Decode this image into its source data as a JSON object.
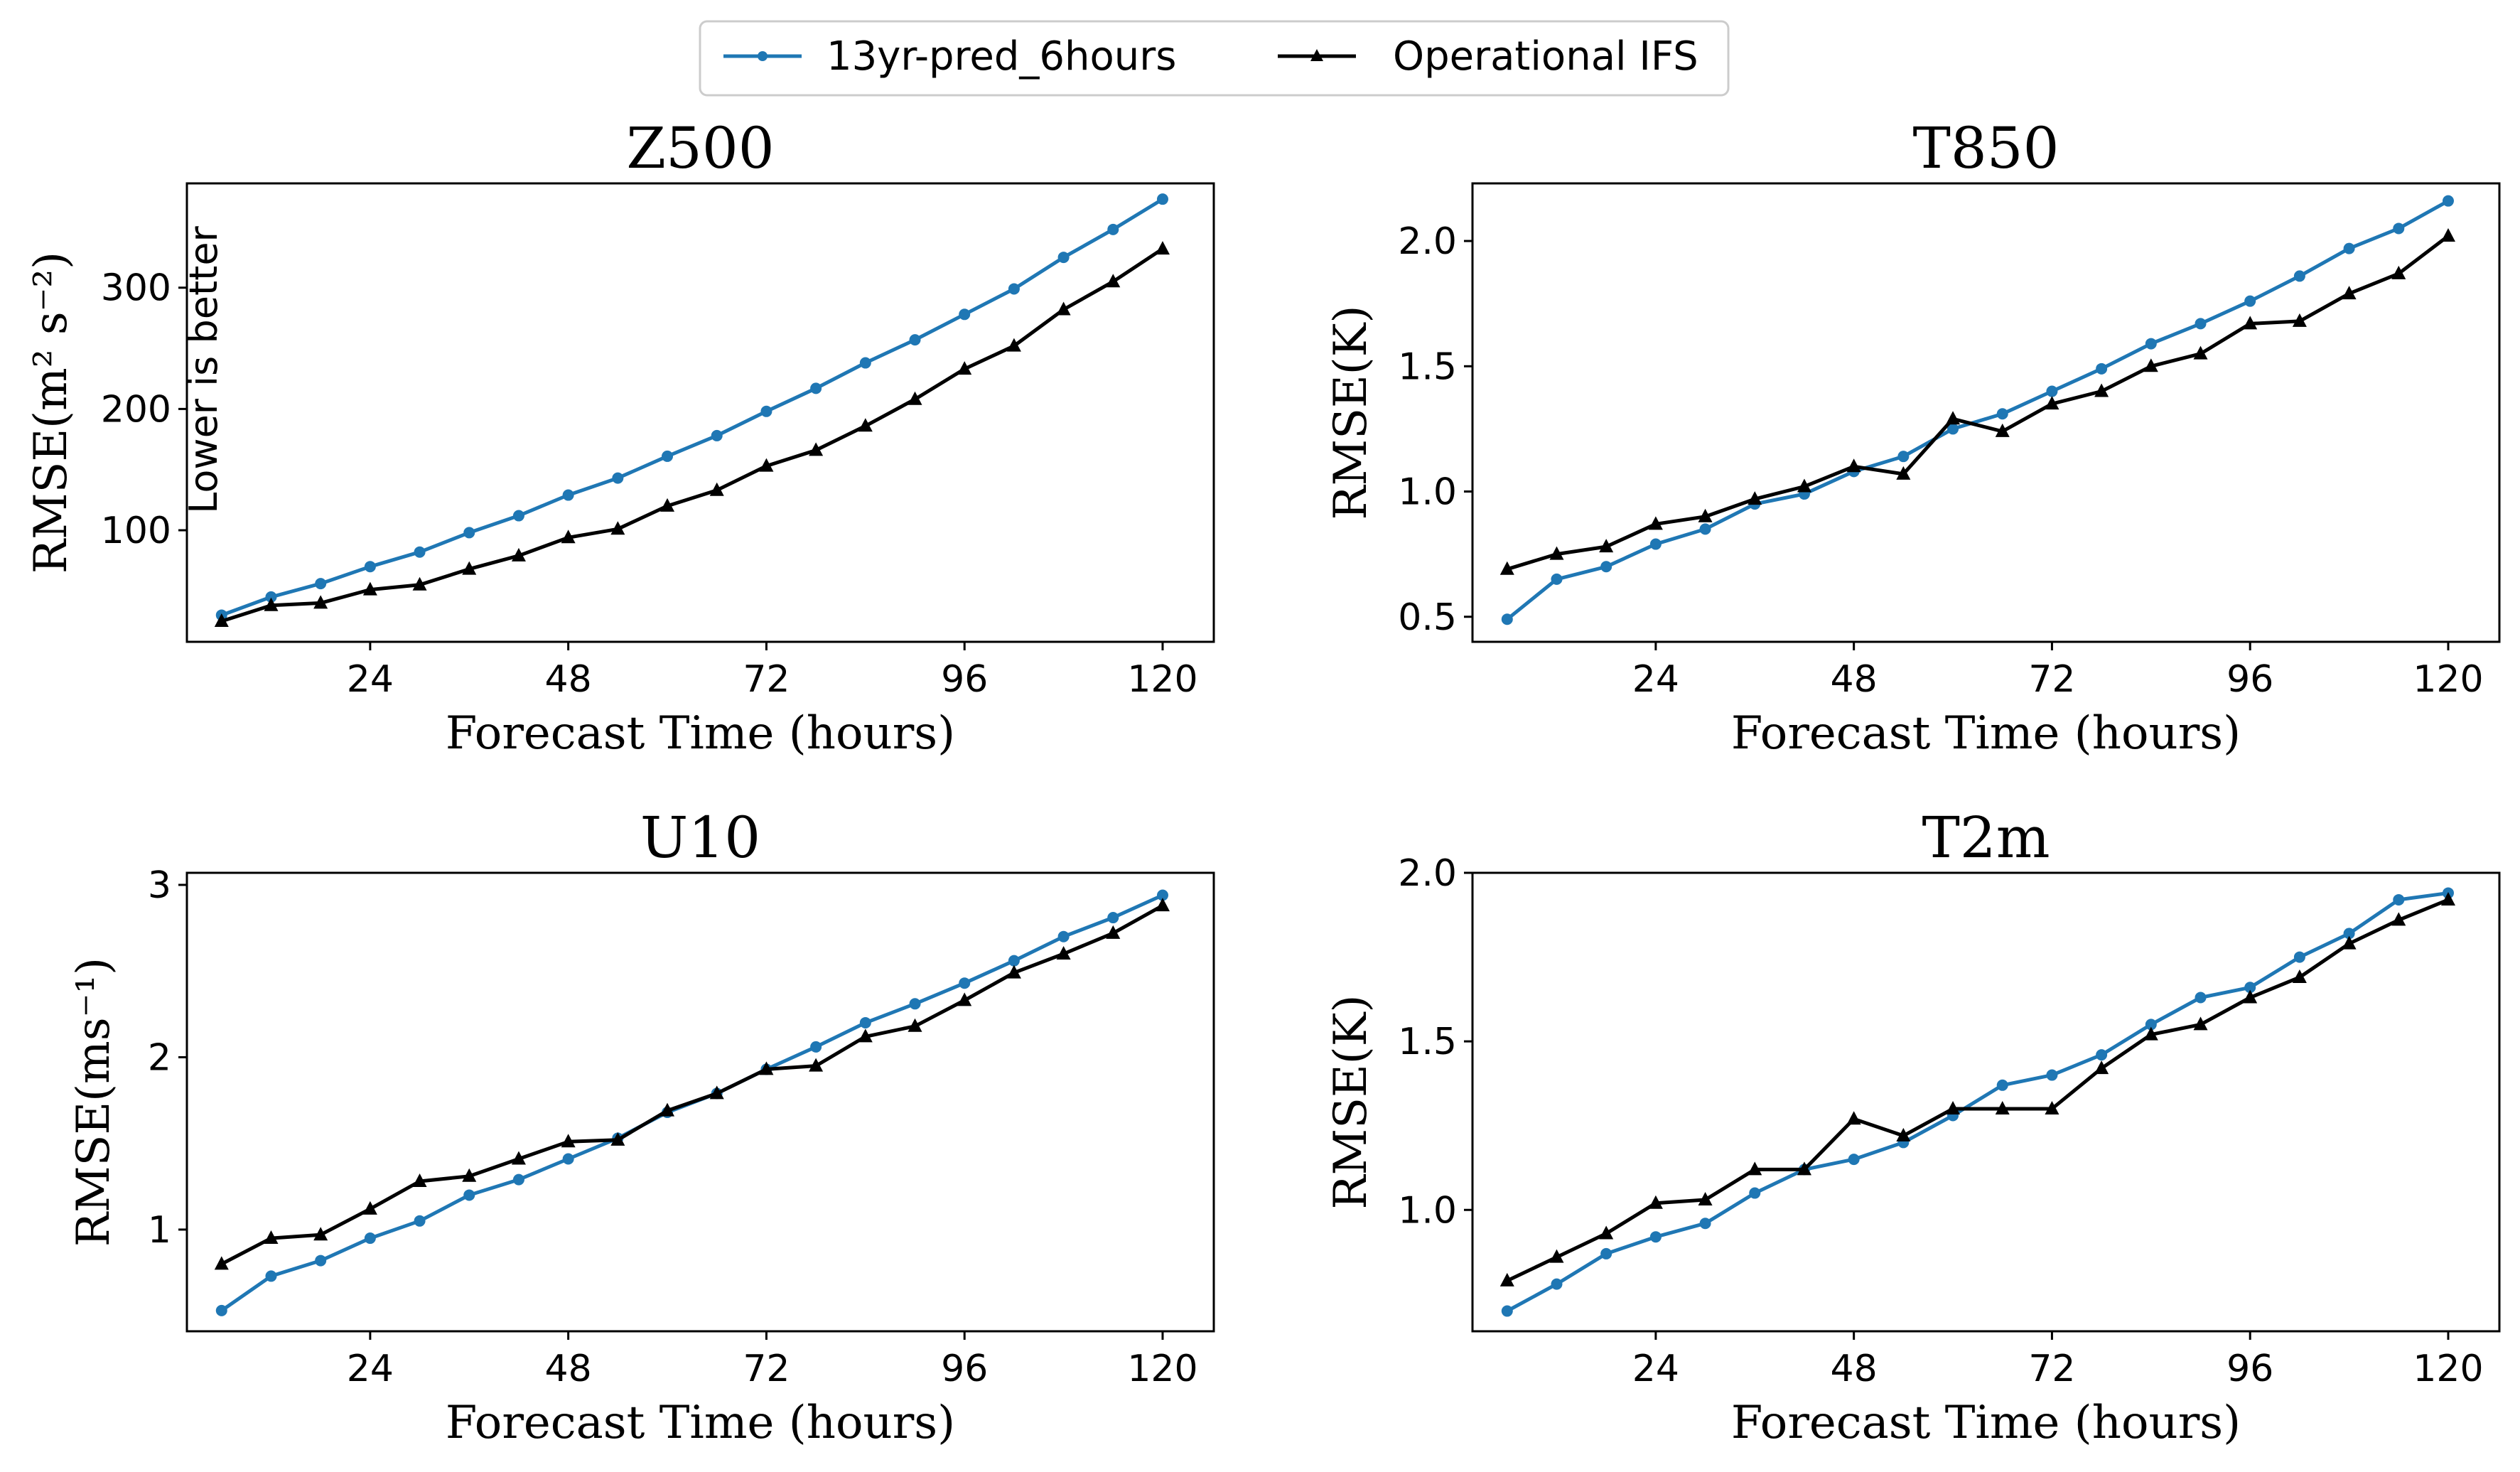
{
  "legend": {
    "entries": [
      {
        "label": "13yr-pred_6hours",
        "color": "#1f77b4",
        "marker": "circle"
      },
      {
        "label": "Operational IFS",
        "color": "#000000",
        "marker": "triangle"
      }
    ]
  },
  "chart_data": [
    {
      "type": "line",
      "title": "Z500",
      "xlabel": "Forecast Time (hours)",
      "ylabel": "RMSE(m² s⁻²)",
      "annotation": "Lower is better",
      "xlim": [
        1.8,
        126.2
      ],
      "ylim": [
        8,
        386
      ],
      "xticks": [
        24,
        48,
        72,
        96,
        120
      ],
      "yticks": [
        100,
        200,
        300
      ],
      "x": [
        6,
        12,
        18,
        24,
        30,
        36,
        42,
        48,
        54,
        60,
        66,
        72,
        78,
        84,
        90,
        96,
        102,
        108,
        114,
        120
      ],
      "series": [
        {
          "name": "13yr-pred_6hours",
          "color": "#1f77b4",
          "marker": "circle",
          "values": [
            30,
            45,
            56,
            70,
            82,
            98,
            112,
            129,
            143,
            161,
            178,
            198,
            217,
            238,
            257,
            278,
            299,
            325,
            348,
            373
          ]
        },
        {
          "name": "Operational IFS",
          "color": "#000000",
          "marker": "triangle",
          "values": [
            25,
            38,
            40,
            51,
            55,
            68,
            79,
            94,
            101,
            120,
            133,
            153,
            166,
            186,
            208,
            233,
            252,
            282,
            305,
            332
          ]
        }
      ],
      "grid": false
    },
    {
      "type": "line",
      "title": "T850",
      "xlabel": "Forecast Time (hours)",
      "ylabel": "RMSE(K)",
      "xlim": [
        1.8,
        126.2
      ],
      "ylim": [
        0.4,
        2.23
      ],
      "xticks": [
        24,
        48,
        72,
        96,
        120
      ],
      "yticks": [
        "0.5",
        "1.0",
        "1.5",
        "2.0"
      ],
      "x": [
        6,
        12,
        18,
        24,
        30,
        36,
        42,
        48,
        54,
        60,
        66,
        72,
        78,
        84,
        90,
        96,
        102,
        108,
        114,
        120
      ],
      "series": [
        {
          "name": "13yr-pred_6hours",
          "color": "#1f77b4",
          "marker": "circle",
          "values": [
            0.49,
            0.65,
            0.7,
            0.79,
            0.85,
            0.95,
            0.99,
            1.08,
            1.14,
            1.25,
            1.31,
            1.4,
            1.49,
            1.59,
            1.67,
            1.76,
            1.86,
            1.97,
            2.05,
            2.16
          ]
        },
        {
          "name": "Operational IFS",
          "color": "#000000",
          "marker": "triangle",
          "values": [
            0.69,
            0.75,
            0.78,
            0.87,
            0.9,
            0.97,
            1.02,
            1.1,
            1.07,
            1.29,
            1.24,
            1.35,
            1.4,
            1.5,
            1.55,
            1.67,
            1.68,
            1.79,
            1.87,
            2.02
          ]
        }
      ],
      "grid": false
    },
    {
      "type": "line",
      "title": "U10",
      "xlabel": "Forecast Time (hours)",
      "ylabel": "RMSE(ms⁻¹)",
      "xlim": [
        1.8,
        126.2
      ],
      "ylim": [
        0.41,
        3.07
      ],
      "xticks": [
        24,
        48,
        72,
        96,
        120
      ],
      "yticks": [
        "1",
        "2",
        "3"
      ],
      "x": [
        6,
        12,
        18,
        24,
        30,
        36,
        42,
        48,
        54,
        60,
        66,
        72,
        78,
        84,
        90,
        96,
        102,
        108,
        114,
        120
      ],
      "series": [
        {
          "name": "13yr-pred_6hours",
          "color": "#1f77b4",
          "marker": "circle",
          "values": [
            0.53,
            0.73,
            0.82,
            0.95,
            1.05,
            1.2,
            1.29,
            1.41,
            1.53,
            1.68,
            1.79,
            1.93,
            2.06,
            2.2,
            2.31,
            2.43,
            2.56,
            2.7,
            2.81,
            2.94
          ]
        },
        {
          "name": "Operational IFS",
          "color": "#000000",
          "marker": "triangle",
          "values": [
            0.8,
            0.95,
            0.97,
            1.12,
            1.28,
            1.31,
            1.41,
            1.51,
            1.52,
            1.69,
            1.79,
            1.93,
            1.95,
            2.12,
            2.18,
            2.33,
            2.49,
            2.6,
            2.72,
            2.88
          ]
        }
      ],
      "grid": false
    },
    {
      "type": "line",
      "title": "T2m",
      "xlabel": "Forecast Time (hours)",
      "ylabel": "RMSE(K)",
      "xlim": [
        1.8,
        126.2
      ],
      "ylim": [
        0.64,
        2.0
      ],
      "xticks": [
        24,
        48,
        72,
        96,
        120
      ],
      "yticks": [
        "1.0",
        "1.5",
        "2.0"
      ],
      "x": [
        6,
        12,
        18,
        24,
        30,
        36,
        42,
        48,
        54,
        60,
        66,
        72,
        78,
        84,
        90,
        96,
        102,
        108,
        114,
        120
      ],
      "series": [
        {
          "name": "13yr-pred_6hours",
          "color": "#1f77b4",
          "marker": "circle",
          "values": [
            0.7,
            0.78,
            0.87,
            0.92,
            0.96,
            1.05,
            1.12,
            1.15,
            1.2,
            1.28,
            1.37,
            1.4,
            1.46,
            1.55,
            1.63,
            1.66,
            1.75,
            1.82,
            1.92,
            1.94
          ]
        },
        {
          "name": "Operational IFS",
          "color": "#000000",
          "marker": "triangle",
          "values": [
            0.79,
            0.86,
            0.93,
            1.02,
            1.03,
            1.12,
            1.12,
            1.27,
            1.22,
            1.3,
            1.3,
            1.3,
            1.42,
            1.52,
            1.55,
            1.63,
            1.69,
            1.79,
            1.86,
            1.92
          ]
        }
      ],
      "grid": false
    }
  ]
}
